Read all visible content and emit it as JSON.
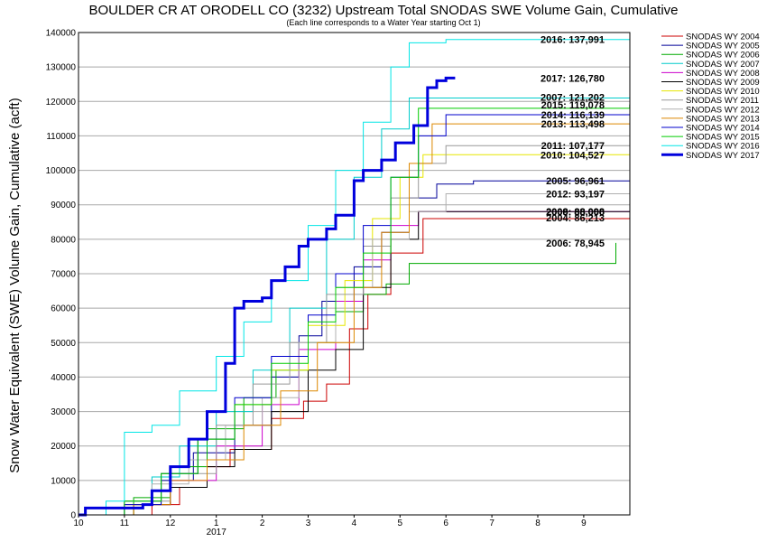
{
  "chart_data": {
    "type": "line",
    "title": "BOULDER CR AT ORODELL CO (3232) Upstream Total SNODAS SWE Volume Gain, Cumulative",
    "subtitle": "(Each line corresponds to a Water Year starting Oct 1)",
    "ylabel": "Snow Water Equivalent (SWE) Volume Gain, Cumulative (acft)",
    "xlabel": "",
    "xlim": [
      0,
      12
    ],
    "ylim": [
      0,
      140000
    ],
    "x_ticks": [
      {
        "label": "10",
        "value": 0
      },
      {
        "label": "11",
        "value": 1
      },
      {
        "label": "12",
        "value": 2
      },
      {
        "label": "1",
        "value": 3
      },
      {
        "label": "2",
        "value": 4
      },
      {
        "label": "3",
        "value": 5
      },
      {
        "label": "4",
        "value": 6
      },
      {
        "label": "5",
        "value": 7
      },
      {
        "label": "6",
        "value": 8
      },
      {
        "label": "7",
        "value": 9
      },
      {
        "label": "8",
        "value": 10
      },
      {
        "label": "9",
        "value": 11
      }
    ],
    "x_year_label": {
      "label": "2017",
      "value": 3
    },
    "y_ticks": [
      0,
      10000,
      20000,
      30000,
      40000,
      50000,
      60000,
      70000,
      80000,
      90000,
      100000,
      110000,
      120000,
      130000,
      140000
    ],
    "grid": true,
    "legend_position": "right",
    "series": [
      {
        "name": "SNODAS WY 2004",
        "color": "#cc0000",
        "width": 1,
        "x": [
          0,
          1.6,
          2.2,
          2.8,
          3.3,
          4.2,
          4.9,
          5.4,
          5.9,
          6.3,
          6.8,
          7.5,
          12.0
        ],
        "y": [
          0,
          3000,
          8000,
          14000,
          19000,
          28000,
          33000,
          38000,
          54000,
          64000,
          76000,
          86000,
          86213
        ]
      },
      {
        "name": "SNODAS WY 2005",
        "color": "#000099",
        "width": 1,
        "x": [
          0,
          1.0,
          1.8,
          2.5,
          3.4,
          4.2,
          4.8,
          5.3,
          6.0,
          6.6,
          7.2,
          7.8,
          8.6,
          12.0
        ],
        "y": [
          0,
          4000,
          10000,
          18000,
          26000,
          40000,
          52000,
          62000,
          72000,
          82000,
          92000,
          96000,
          96961,
          96961
        ]
      },
      {
        "name": "SNODAS WY 2006",
        "color": "#00aa00",
        "width": 1,
        "x": [
          0,
          1.2,
          2.0,
          2.8,
          3.6,
          4.3,
          5.0,
          5.6,
          6.2,
          6.7,
          7.2,
          11.4,
          11.7
        ],
        "y": [
          0,
          5000,
          14000,
          25000,
          34000,
          42000,
          50000,
          59000,
          64000,
          67000,
          73000,
          73000,
          78945
        ]
      },
      {
        "name": "SNODAS WY 2007",
        "color": "#00cccc",
        "width": 1,
        "x": [
          0,
          1.0,
          1.6,
          2.2,
          3.0,
          3.8,
          4.6,
          5.4,
          6.0,
          6.6,
          7.2,
          12.0
        ],
        "y": [
          0,
          4000,
          11000,
          20000,
          30000,
          42000,
          60000,
          80000,
          98000,
          112000,
          121000,
          121202
        ]
      },
      {
        "name": "SNODAS WY 2008",
        "color": "#cc00cc",
        "width": 1,
        "x": [
          0,
          1.0,
          2.0,
          3.0,
          4.0,
          4.8,
          5.6,
          6.2,
          6.8,
          7.4,
          12.0
        ],
        "y": [
          0,
          3000,
          10000,
          20000,
          32000,
          48000,
          62000,
          74000,
          84000,
          88000,
          88098
        ]
      },
      {
        "name": "SNODAS WY 2009",
        "color": "#000000",
        "width": 1,
        "x": [
          0,
          1.2,
          2.0,
          2.8,
          3.4,
          4.2,
          5.0,
          5.6,
          6.2,
          6.8,
          7.4,
          12.0
        ],
        "y": [
          0,
          3000,
          8000,
          14000,
          19000,
          30000,
          42000,
          48000,
          66000,
          80000,
          88000,
          88000
        ]
      },
      {
        "name": "SNODAS WY 2010",
        "color": "#e6e600",
        "width": 1,
        "x": [
          0,
          1.0,
          1.8,
          2.6,
          3.4,
          4.2,
          5.0,
          5.8,
          6.4,
          7.0,
          7.5,
          12.0
        ],
        "y": [
          0,
          3000,
          12000,
          22000,
          32000,
          42000,
          55000,
          68000,
          86000,
          98000,
          104527,
          104527
        ]
      },
      {
        "name": "SNODAS WY 2011",
        "color": "#999999",
        "width": 1,
        "x": [
          0,
          1.0,
          2.0,
          3.0,
          3.8,
          4.6,
          5.4,
          6.2,
          6.8,
          7.4,
          8.0,
          12.0
        ],
        "y": [
          0,
          4000,
          12000,
          26000,
          38000,
          50000,
          64000,
          78000,
          92000,
          102000,
          107177,
          107177
        ]
      },
      {
        "name": "SNODAS WY 2012",
        "color": "#b0b0b0",
        "width": 1,
        "x": [
          0,
          1.0,
          1.6,
          2.4,
          3.2,
          4.0,
          4.8,
          5.6,
          6.4,
          7.2,
          8.0,
          12.0
        ],
        "y": [
          0,
          4000,
          9000,
          16000,
          26000,
          34000,
          50000,
          66000,
          80000,
          88000,
          93197,
          93197
        ]
      },
      {
        "name": "SNODAS WY 2013",
        "color": "#dd8800",
        "width": 1,
        "x": [
          0,
          1.2,
          2.0,
          2.8,
          3.6,
          4.4,
          5.2,
          6.0,
          6.6,
          7.2,
          7.7,
          12.0
        ],
        "y": [
          0,
          3000,
          10000,
          16000,
          26000,
          36000,
          50000,
          66000,
          82000,
          102000,
          113498,
          113498
        ]
      },
      {
        "name": "SNODAS WY 2014",
        "color": "#0000cc",
        "width": 1,
        "x": [
          0,
          1.0,
          1.8,
          2.6,
          3.4,
          4.2,
          5.0,
          5.6,
          6.2,
          6.8,
          7.4,
          8.0,
          12.0
        ],
        "y": [
          0,
          3000,
          12000,
          22000,
          34000,
          46000,
          58000,
          70000,
          84000,
          98000,
          110000,
          116139,
          116139
        ]
      },
      {
        "name": "SNODAS WY 2015",
        "color": "#00cc00",
        "width": 1,
        "x": [
          0,
          1.0,
          1.8,
          2.6,
          3.4,
          4.2,
          5.0,
          5.6,
          6.2,
          6.8,
          7.4,
          12.0
        ],
        "y": [
          0,
          4000,
          12000,
          22000,
          32000,
          44000,
          56000,
          66000,
          76000,
          98000,
          118000,
          119078
        ]
      },
      {
        "name": "SNODAS WY 2016",
        "color": "#00e6e6",
        "width": 1,
        "x": [
          0,
          0.6,
          1.0,
          1.6,
          2.2,
          3.0,
          3.6,
          4.2,
          5.0,
          5.6,
          6.2,
          6.8,
          7.2,
          8.0,
          12.0
        ],
        "y": [
          0,
          4000,
          24000,
          26000,
          36000,
          46000,
          56000,
          68000,
          84000,
          100000,
          114000,
          130000,
          137000,
          137991,
          137991
        ]
      },
      {
        "name": "SNODAS WY 2017",
        "color": "#0000dd",
        "width": 3,
        "x": [
          0,
          0.15,
          0.5,
          1.4,
          1.6,
          2.0,
          2.4,
          2.8,
          3.2,
          3.4,
          3.6,
          4.0,
          4.2,
          4.5,
          4.8,
          5.0,
          5.4,
          5.6,
          6.0,
          6.2,
          6.6,
          6.9,
          7.3,
          7.6,
          7.8,
          8.0,
          8.2
        ],
        "y": [
          0,
          2000,
          2000,
          3000,
          7000,
          14000,
          22000,
          30000,
          44000,
          60000,
          62000,
          63000,
          68000,
          72000,
          78000,
          80000,
          83000,
          87000,
          97000,
          100000,
          103000,
          108000,
          113000,
          124000,
          126000,
          126780,
          126780
        ]
      }
    ],
    "annotations": [
      {
        "text": "2016: 137,991",
        "x": 12.0,
        "y": 137991
      },
      {
        "text": "2017: 126,780",
        "x": 12.0,
        "y": 126780
      },
      {
        "text": "2007: 121,202",
        "x": 12.0,
        "y": 121202
      },
      {
        "text": "2015: 119,078",
        "x": 12.0,
        "y": 119078
      },
      {
        "text": "2014: 116,139",
        "x": 12.0,
        "y": 116139
      },
      {
        "text": "2013: 113,498",
        "x": 12.0,
        "y": 113498
      },
      {
        "text": "2011: 107,177",
        "x": 12.0,
        "y": 107177
      },
      {
        "text": "2010: 104,527",
        "x": 12.0,
        "y": 104527
      },
      {
        "text": "2005: 96,961",
        "x": 12.0,
        "y": 96961
      },
      {
        "text": "2012: 93,197",
        "x": 12.0,
        "y": 93197
      },
      {
        "text": "2008: 88,098",
        "x": 12.0,
        "y": 88098
      },
      {
        "text": "2009: 88,000",
        "x": 12.0,
        "y": 88000
      },
      {
        "text": "2004: 86,213",
        "x": 12.0,
        "y": 86213
      },
      {
        "text": "2006: 78,945",
        "x": 12.0,
        "y": 78945
      }
    ]
  }
}
